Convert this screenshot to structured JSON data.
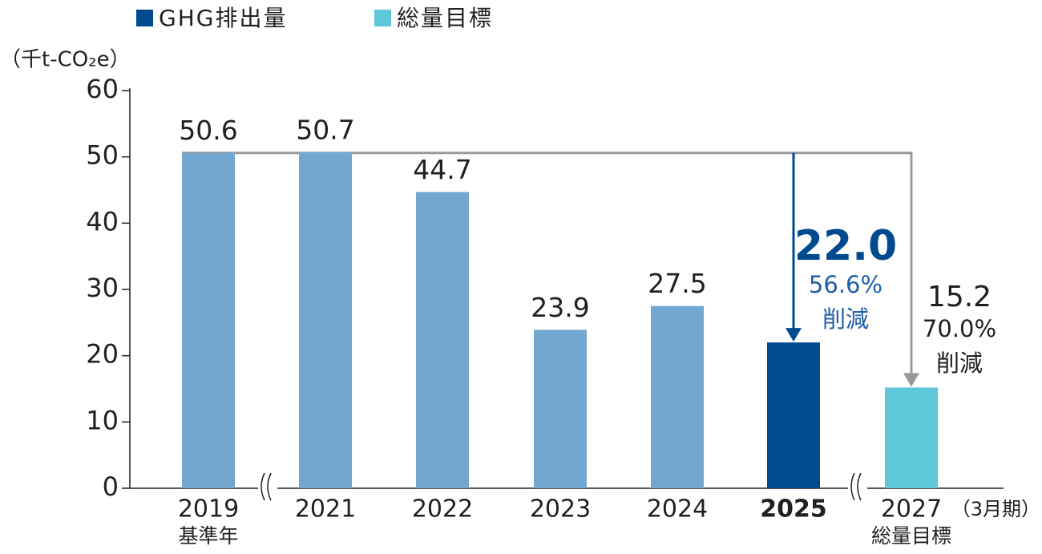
{
  "chart_data": {
    "type": "bar",
    "y_axis_label": "（千t-CO₂e）",
    "x_axis_label": "（3月期）",
    "categories": [
      "2019",
      "2021",
      "2022",
      "2023",
      "2024",
      "2025",
      "2027"
    ],
    "category_notes": [
      "基準年",
      null,
      null,
      null,
      null,
      null,
      "総量目標"
    ],
    "values": [
      50.6,
      50.7,
      44.7,
      23.9,
      27.5,
      22.0,
      15.2
    ],
    "value_labels": [
      "50.6",
      "50.7",
      "44.7",
      "23.9",
      "27.5",
      "22.0",
      "15.2"
    ],
    "colors": [
      "#72a7d1",
      "#72a7d1",
      "#72a7d1",
      "#72a7d1",
      "#72a7d1",
      "#004a8f",
      "#5ec8da"
    ],
    "reduction_labels": [
      null,
      null,
      null,
      null,
      null,
      "56.6%",
      "70.0%"
    ],
    "reduction_word": "削減",
    "legend": [
      {
        "name": "GHG排出量",
        "color": "#004a8f"
      },
      {
        "name": "総量目標",
        "color": "#5ec8da"
      }
    ],
    "ylim": [
      0,
      60
    ],
    "yticks": [
      0,
      10,
      20,
      30,
      40,
      50,
      60
    ]
  }
}
